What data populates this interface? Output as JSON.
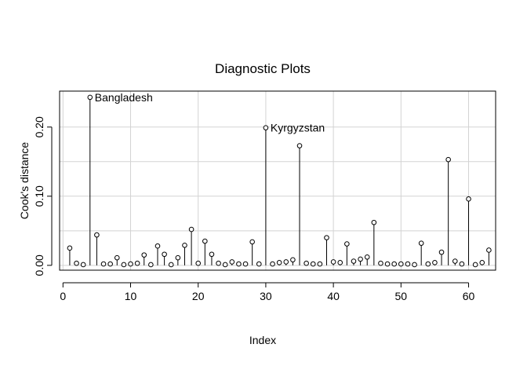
{
  "chart_data": {
    "type": "scatter",
    "title": "Diagnostic Plots",
    "xlabel": "Index",
    "ylabel": "Cook's distance",
    "xlim": [
      -0.5,
      64
    ],
    "ylim": [
      -0.007,
      0.252
    ],
    "x_ticks": [
      0,
      10,
      20,
      30,
      40,
      50,
      60
    ],
    "x_tick_labels": [
      "0",
      "10",
      "20",
      "30",
      "40",
      "50",
      "60"
    ],
    "y_ticks": [
      0.0,
      0.1,
      0.2
    ],
    "y_tick_labels": [
      "0.00",
      "0.10",
      "0.20"
    ],
    "grid": true,
    "grid_x": [
      0,
      10,
      20,
      30,
      40,
      50,
      60
    ],
    "grid_y": [
      0.0,
      0.05,
      0.1,
      0.15,
      0.2
    ],
    "series": [
      {
        "x": [
          1,
          2,
          3,
          4,
          5,
          6,
          7,
          8,
          9,
          10,
          11,
          12,
          13,
          14,
          15,
          16,
          17,
          18,
          19,
          20,
          21,
          22,
          23,
          24,
          25,
          26,
          27,
          28,
          29,
          30,
          31,
          32,
          33,
          34,
          35,
          36,
          37,
          38,
          39,
          40,
          41,
          42,
          43,
          44,
          45,
          46,
          47,
          48,
          49,
          50,
          51,
          52,
          53,
          54,
          55,
          56,
          57,
          58,
          59,
          60,
          61,
          62,
          63
        ],
        "values": [
          0.025,
          0.003,
          0.001,
          0.243,
          0.044,
          0.002,
          0.002,
          0.011,
          0.001,
          0.002,
          0.003,
          0.015,
          0.001,
          0.028,
          0.016,
          0.001,
          0.011,
          0.029,
          0.052,
          0.003,
          0.035,
          0.016,
          0.003,
          0.001,
          0.005,
          0.002,
          0.002,
          0.034,
          0.002,
          0.199,
          0.002,
          0.004,
          0.005,
          0.008,
          0.173,
          0.003,
          0.002,
          0.002,
          0.04,
          0.005,
          0.004,
          0.031,
          0.006,
          0.009,
          0.012,
          0.062,
          0.003,
          0.002,
          0.002,
          0.002,
          0.002,
          0.001,
          0.032,
          0.002,
          0.004,
          0.019,
          0.153,
          0.006,
          0.002,
          0.096,
          0.001,
          0.004,
          0.022
        ]
      }
    ],
    "annotations": [
      {
        "x": 4,
        "y": 0.243,
        "text": "Bangladesh"
      },
      {
        "x": 30,
        "y": 0.199,
        "text": "Kyrgyzstan"
      }
    ]
  }
}
